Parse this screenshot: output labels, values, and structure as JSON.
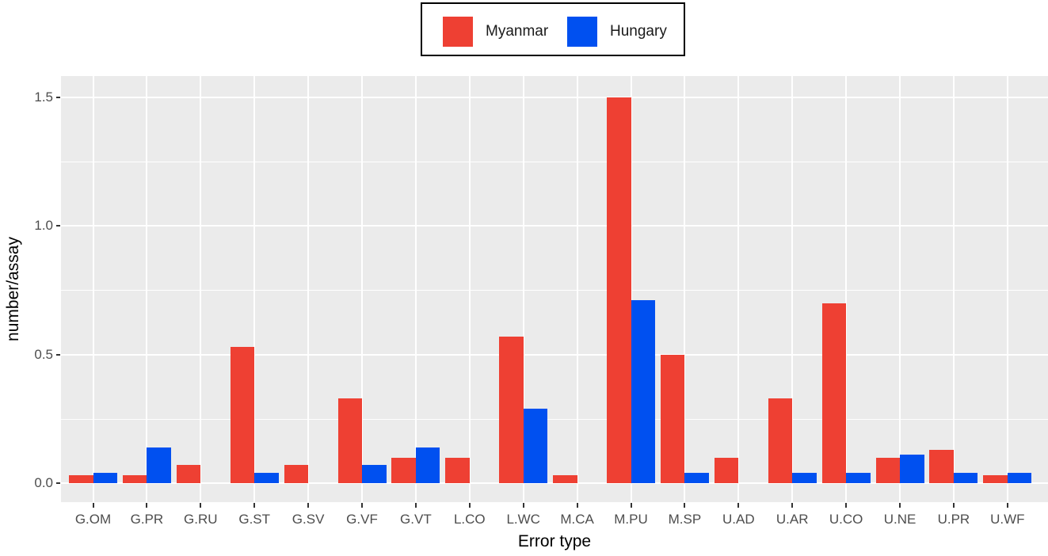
{
  "legend": {
    "items": [
      {
        "label": "Myanmar",
        "color": "#EE4033"
      },
      {
        "label": "Hungary",
        "color": "#0050F0"
      }
    ]
  },
  "axes": {
    "xlabel": "Error type",
    "ylabel": "number/assay",
    "yticks": [
      "0.0",
      "0.5",
      "1.0",
      "1.5"
    ]
  },
  "chart_data": {
    "type": "bar",
    "title": "",
    "xlabel": "Error type",
    "ylabel": "number/assay",
    "ylim": [
      -0.07,
      1.58
    ],
    "grid": true,
    "legend_position": "top",
    "categories": [
      "G.OM",
      "G.PR",
      "G.RU",
      "G.ST",
      "G.SV",
      "G.VF",
      "G.VT",
      "L.CO",
      "L.WC",
      "M.CA",
      "M.PU",
      "M.SP",
      "U.AD",
      "U.AR",
      "U.CO",
      "U.NE",
      "U.PR",
      "U.WF"
    ],
    "series": [
      {
        "name": "Myanmar",
        "color": "#EE4033",
        "values": [
          0.03,
          0.03,
          0.07,
          0.53,
          0.07,
          0.33,
          0.1,
          0.1,
          0.57,
          0.03,
          1.5,
          0.5,
          0.1,
          0.33,
          0.7,
          0.1,
          0.13,
          0.03
        ]
      },
      {
        "name": "Hungary",
        "color": "#0050F0",
        "values": [
          0.04,
          0.14,
          0,
          0.04,
          0,
          0.07,
          0.14,
          0,
          0.29,
          0,
          0.71,
          0.04,
          0,
          0.04,
          0.04,
          0.11,
          0.04,
          0.04
        ]
      }
    ]
  }
}
